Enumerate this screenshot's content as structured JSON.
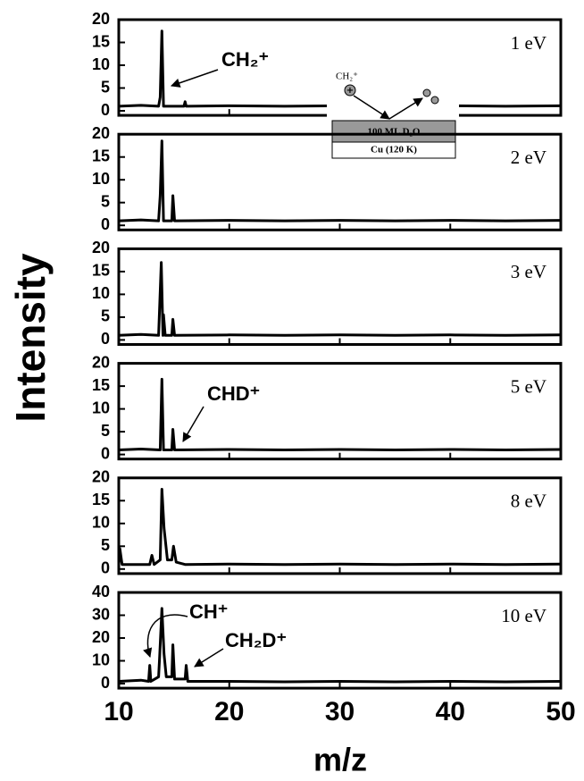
{
  "chart_data": [
    {
      "type": "line",
      "ylabel": "Intensity",
      "label": "1 eV",
      "annotations": [
        "CH₂⁺"
      ],
      "inset": {
        "ion": "CH₂⁺",
        "layer": "100 ML D₂O",
        "substrate": "Cu (120 K)"
      },
      "x": [
        10,
        12,
        13.6,
        13.75,
        13.9,
        14.05,
        15.9,
        16,
        16.1,
        20,
        25,
        30,
        35,
        40,
        45,
        50
      ],
      "series": [
        {
          "color": "#000000",
          "values": [
            1,
            1.2,
            1,
            3,
            17.5,
            1,
            1,
            2,
            1,
            1.1,
            1,
            1.1,
            1,
            1.1,
            1,
            1.1
          ]
        }
      ],
      "xlim": [
        10,
        50
      ],
      "xticks": [
        10,
        20,
        30,
        40,
        50
      ],
      "ylim": [
        -1,
        20
      ],
      "yticks": [
        0,
        5,
        10,
        15,
        20
      ]
    },
    {
      "type": "line",
      "label": "2 eV",
      "annotations": [],
      "x": [
        10,
        12,
        13.6,
        13.75,
        13.9,
        14.05,
        14.8,
        14.9,
        15.05,
        20,
        25,
        30,
        35,
        40,
        45,
        50
      ],
      "series": [
        {
          "color": "#000000",
          "values": [
            1,
            1.2,
            1,
            6.5,
            18.5,
            1,
            1,
            6.5,
            1,
            1.1,
            1,
            1.1,
            1,
            1.1,
            1,
            1.1
          ]
        }
      ],
      "xlim": [
        10,
        50
      ],
      "xticks": [
        10,
        20,
        30,
        40,
        50
      ],
      "ylim": [
        -1,
        20
      ],
      "yticks": [
        0,
        5,
        10,
        15,
        20
      ]
    },
    {
      "type": "line",
      "label": "3 eV",
      "annotations": [],
      "x": [
        10,
        12,
        13.6,
        13.85,
        14.0,
        14.05,
        14.2,
        14.8,
        14.9,
        15.05,
        20,
        25,
        30,
        35,
        40,
        45,
        50
      ],
      "series": [
        {
          "color": "#000000",
          "values": [
            1,
            1.2,
            1,
            17,
            1,
            5.5,
            1,
            1,
            4.5,
            1,
            1.1,
            1,
            1.1,
            1,
            1.1,
            1,
            1.1
          ]
        }
      ],
      "xlim": [
        10,
        50
      ],
      "xticks": [
        10,
        20,
        30,
        40,
        50
      ],
      "ylim": [
        -1,
        20
      ],
      "yticks": [
        0,
        5,
        10,
        15,
        20
      ]
    },
    {
      "type": "line",
      "label": "5 eV",
      "annotations": [
        "CHD⁺"
      ],
      "x": [
        10,
        12,
        13.75,
        13.9,
        14.05,
        14.8,
        14.9,
        15.05,
        20,
        25,
        30,
        35,
        40,
        45,
        50
      ],
      "series": [
        {
          "color": "#000000",
          "values": [
            1,
            1.2,
            1,
            16.5,
            1,
            1,
            5.5,
            1,
            1.1,
            1,
            1.1,
            1,
            1.1,
            1,
            1.1
          ]
        }
      ],
      "xlim": [
        10,
        50
      ],
      "xticks": [
        10,
        20,
        30,
        40,
        50
      ],
      "ylim": [
        -1,
        20
      ],
      "yticks": [
        0,
        5,
        10,
        15,
        20
      ]
    },
    {
      "type": "line",
      "label": "8 eV",
      "annotations": [],
      "x": [
        10,
        10.1,
        10.3,
        12.8,
        13,
        13.2,
        13.75,
        13.9,
        14.1,
        14.4,
        14.8,
        14.95,
        15.2,
        16,
        20,
        25,
        30,
        35,
        40,
        45,
        50
      ],
      "series": [
        {
          "color": "#000000",
          "values": [
            1,
            4.5,
            1,
            1,
            3,
            1,
            2,
            17.5,
            9,
            2,
            2,
            5,
            1.5,
            1,
            1.1,
            1,
            1.1,
            1,
            1.1,
            1,
            1.1
          ]
        }
      ],
      "xlim": [
        10,
        50
      ],
      "xticks": [
        10,
        20,
        30,
        40,
        50
      ],
      "ylim": [
        -1,
        20
      ],
      "yticks": [
        0,
        5,
        10,
        15,
        20
      ]
    },
    {
      "type": "line",
      "label": "10 eV",
      "xlabel": "m/z",
      "annotations": [
        "CH⁺",
        "CH₂D⁺"
      ],
      "x": [
        10,
        12,
        12.7,
        12.8,
        12.9,
        13.6,
        13.7,
        13.9,
        14.1,
        14.3,
        14.8,
        14.9,
        15.05,
        16,
        16.1,
        16.25,
        20,
        25,
        30,
        35,
        40,
        45,
        50
      ],
      "series": [
        {
          "color": "#000000",
          "values": [
            1,
            1.5,
            1,
            8,
            1,
            3,
            12,
            33,
            13,
            3,
            3,
            17,
            2,
            2,
            8,
            1,
            1,
            0.8,
            1,
            0.8,
            1,
            0.8,
            1
          ]
        }
      ],
      "xlim": [
        10,
        50
      ],
      "xticks": [
        10,
        20,
        30,
        40,
        50
      ],
      "ylim": [
        -2,
        40
      ],
      "yticks": [
        0,
        10,
        20,
        30,
        40
      ]
    }
  ]
}
